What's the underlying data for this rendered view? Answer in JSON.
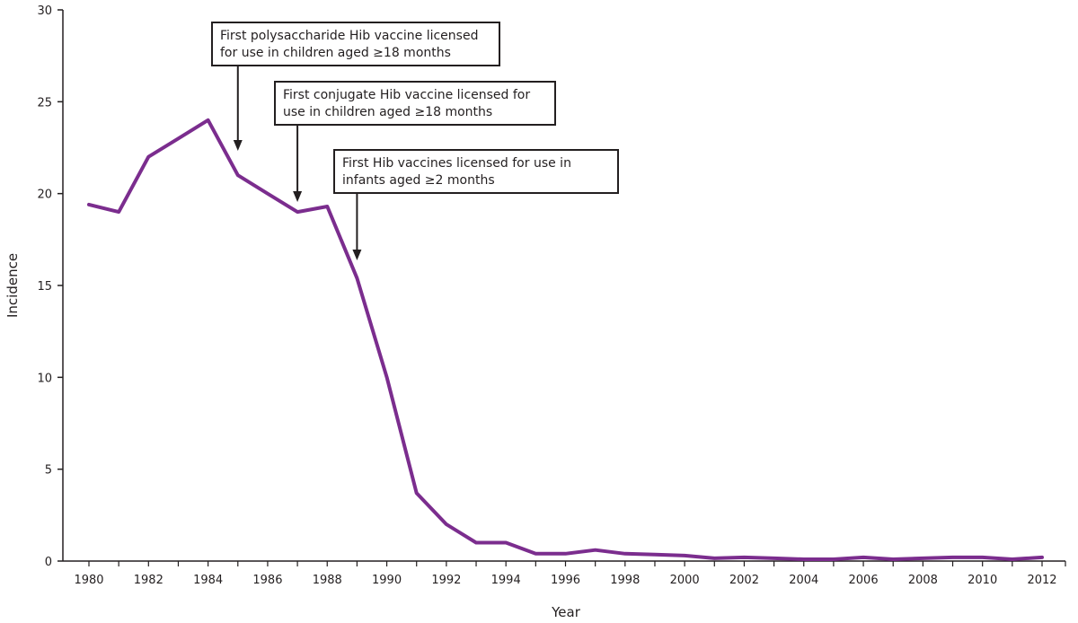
{
  "chart_data": {
    "type": "line",
    "title": "",
    "xlabel": "Year",
    "ylabel": "Incidence",
    "xlim": [
      1979.5,
      1980.5
    ],
    "x_tick_labels": [
      "1980",
      "1982",
      "1984",
      "1986",
      "1988",
      "1990",
      "1992",
      "1994",
      "1996",
      "1998",
      "2000",
      "2002",
      "2004",
      "2006",
      "2008",
      "2010",
      "2012"
    ],
    "y_tick_labels": [
      "0",
      "5",
      "10",
      "15",
      "20",
      "25",
      "30"
    ],
    "ylim": [
      0,
      30
    ],
    "grid": false,
    "legend": "none",
    "series": [
      {
        "color": "#7b2d8e",
        "x": [
          1980,
          1981,
          1982,
          1983,
          1984,
          1985,
          1986,
          1987,
          1988,
          1989,
          1990,
          1991,
          1992,
          1993,
          1994,
          1995,
          1996,
          1997,
          1998,
          1999,
          2000,
          2001,
          2002,
          2003,
          2004,
          2005,
          2006,
          2007,
          2008,
          2009,
          2010,
          2011,
          2012
        ],
        "y": [
          19.4,
          19.0,
          22.0,
          23.0,
          24.0,
          21.0,
          20.0,
          19.0,
          19.3,
          15.4,
          10.0,
          3.7,
          2.0,
          1.0,
          1.0,
          0.4,
          0.4,
          0.6,
          0.4,
          0.35,
          0.3,
          0.15,
          0.2,
          0.15,
          0.1,
          0.1,
          0.2,
          0.1,
          0.15,
          0.2,
          0.2,
          0.1,
          0.2
        ]
      }
    ],
    "annotations": [
      {
        "lines": [
          "First polysaccharide Hib vaccine licensed",
          "for use in children aged ≥18 months"
        ],
        "year": 1985
      },
      {
        "lines": [
          "First conjugate Hib vaccine licensed for",
          "use in children aged ≥18 months"
        ],
        "year": 1987
      },
      {
        "lines": [
          "First Hib vaccines licensed for use in",
          "infants aged ≥2 months"
        ],
        "year": 1989
      }
    ]
  }
}
